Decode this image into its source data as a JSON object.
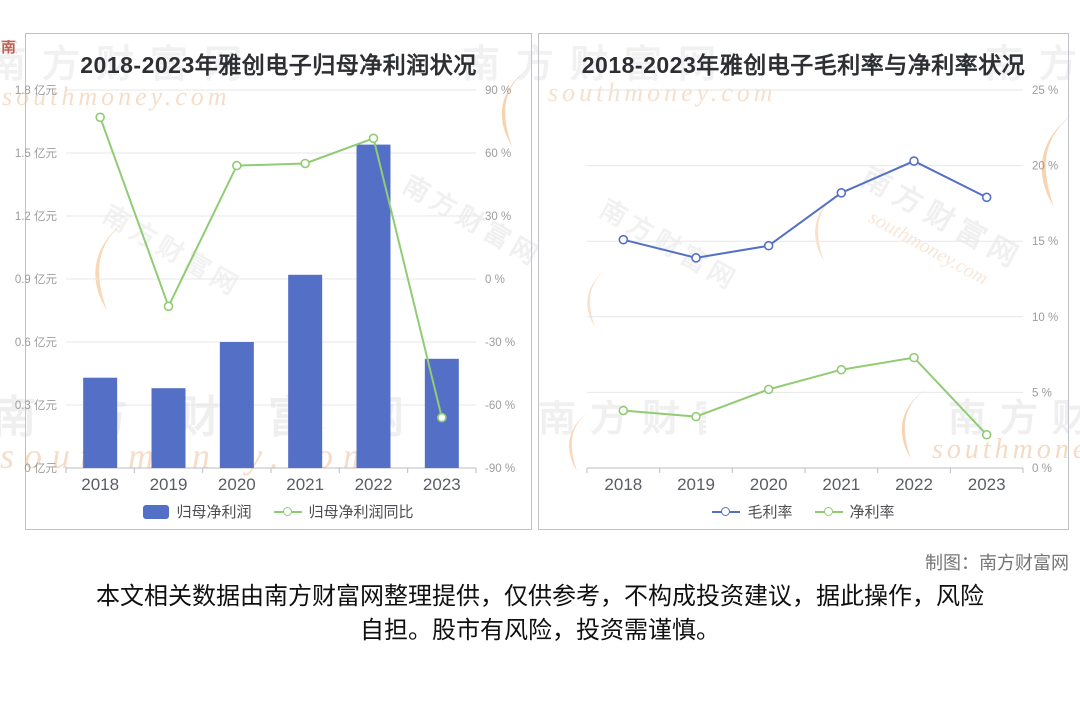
{
  "watermark": {
    "brand": "南方财富网",
    "domain": "southmoney.com"
  },
  "chart_data": [
    {
      "type": "bar",
      "title": "2018-2023年雅创电子归母净利润状况",
      "categories": [
        "2018",
        "2019",
        "2020",
        "2021",
        "2022",
        "2023"
      ],
      "series": [
        {
          "name": "归母净利润",
          "type": "bar",
          "axis": "left",
          "color": "#5470c6",
          "unit": "亿元",
          "values": [
            0.43,
            0.38,
            0.6,
            0.92,
            1.54,
            0.52
          ]
        },
        {
          "name": "归母净利润同比",
          "type": "line",
          "axis": "right",
          "color": "#91cc75",
          "unit": "%",
          "values": [
            77,
            -13,
            54,
            55,
            67,
            -66
          ]
        }
      ],
      "left_axis": {
        "min": 0,
        "max": 1.8,
        "tick_step": 0.3,
        "label_suffix": " 亿元"
      },
      "right_axis": {
        "min": -90,
        "max": 90,
        "tick_step": 30,
        "label_suffix": " %"
      },
      "grid": true,
      "legend_position": "bottom"
    },
    {
      "type": "line",
      "title": "2018-2023年雅创电子毛利率与净利率状况",
      "categories": [
        "2018",
        "2019",
        "2020",
        "2021",
        "2022",
        "2023"
      ],
      "series": [
        {
          "name": "毛利率",
          "type": "line",
          "axis": "right",
          "color": "#5470c6",
          "unit": "%",
          "values": [
            15.1,
            13.9,
            14.7,
            18.2,
            20.3,
            17.9
          ]
        },
        {
          "name": "净利率",
          "type": "line",
          "axis": "right",
          "color": "#91cc75",
          "unit": "%",
          "values": [
            3.8,
            3.4,
            5.2,
            6.5,
            7.3,
            2.2
          ]
        }
      ],
      "right_axis": {
        "min": 0,
        "max": 25,
        "tick_step": 5,
        "label_suffix": " %"
      },
      "grid": true,
      "legend_position": "bottom"
    }
  ],
  "footer": {
    "credit": "制图：南方财富网",
    "disclaimer": "本文相关数据由南方财富网整理提供，仅供参考，不构成投资建议，据此操作，风险自担。股市有风险，投资需谨慎。"
  },
  "style": {
    "bar_color": "#5470c6",
    "line_green": "#91cc75",
    "grid_color": "#e7e7e7",
    "axis_color": "#b9bdc4",
    "watermark_orange": "#f2a964"
  }
}
